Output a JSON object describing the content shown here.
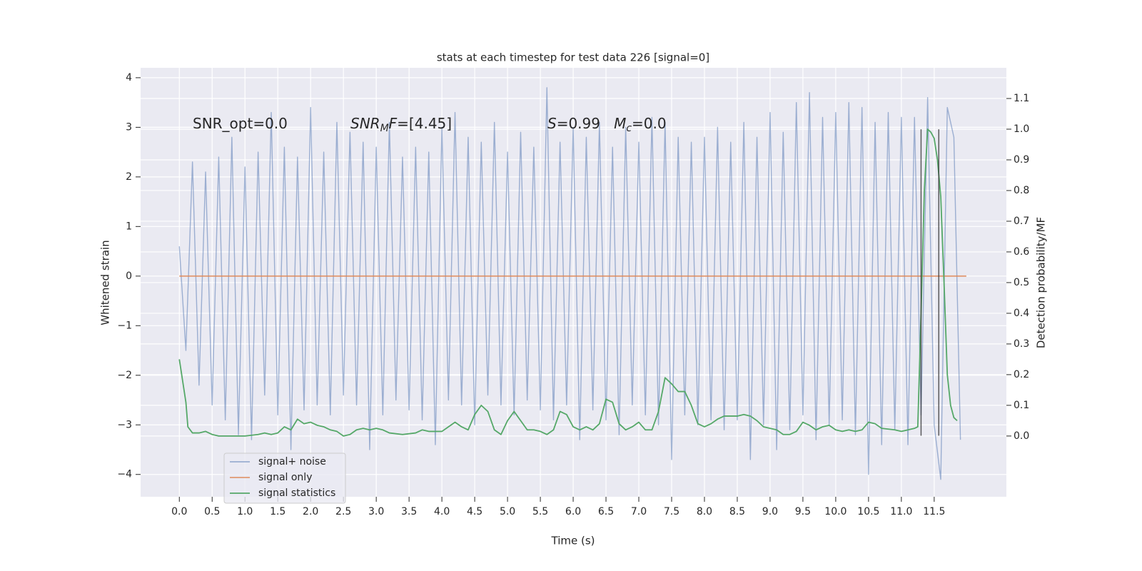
{
  "chart_data": {
    "type": "line",
    "title": "stats at each timestep for test data 226 [signal=0]",
    "xlabel": "Time (s)",
    "ylabel": "Whitened strain",
    "y2label": "Detection probability/MF",
    "xlim": [
      -0.59,
      12.6
    ],
    "ylim": [
      -4.45,
      4.2
    ],
    "y2lim": [
      -0.198,
      1.2
    ],
    "xticks": [
      {
        "value": 0,
        "label": "0.0"
      },
      0.5,
      {
        "value": 1,
        "label": "1.0"
      },
      1.5,
      {
        "value": 2,
        "label": "2.0"
      },
      2.5,
      {
        "value": 3,
        "label": "3.0"
      },
      3.5,
      {
        "value": 4,
        "label": "4.0"
      },
      4.5,
      {
        "value": 5,
        "label": "5.0"
      },
      5.5,
      {
        "value": 6,
        "label": "6.0"
      },
      6.5,
      {
        "value": 7,
        "label": "7.0"
      },
      7.5,
      {
        "value": 8,
        "label": "8.0"
      },
      8.5,
      {
        "value": 9,
        "label": "9.0"
      },
      9.5,
      {
        "value": 10,
        "label": "10.0"
      },
      10.5,
      {
        "value": 11,
        "label": "11.0"
      },
      11.5
    ],
    "yticks": [
      {
        "value": -4,
        "label": "−4"
      },
      {
        "value": -3,
        "label": "−3"
      },
      {
        "value": -2,
        "label": "−2"
      },
      {
        "value": -1,
        "label": "−1"
      },
      0,
      1,
      2,
      3,
      4
    ],
    "y2ticks": [
      {
        "value": 0,
        "label": "0.0"
      },
      0.1,
      0.2,
      0.3,
      0.4,
      0.5,
      0.6,
      0.7,
      0.8,
      0.9,
      {
        "value": 1,
        "label": "1.0"
      },
      1.1
    ],
    "grid": true,
    "legend": "lower left",
    "series": [
      {
        "name": "signal+ noise",
        "color": "#4c72b0",
        "opacity": 0.5,
        "x": [
          0,
          0.1,
          0.2,
          0.3,
          0.4,
          0.5,
          0.6,
          0.7,
          0.8,
          0.9,
          1,
          1.1,
          1.2,
          1.3,
          1.4,
          1.5,
          1.6,
          1.7,
          1.8,
          1.9,
          2,
          2.1,
          2.2,
          2.3,
          2.4,
          2.5,
          2.6,
          2.7,
          2.8,
          2.9,
          3,
          3.1,
          3.2,
          3.3,
          3.4,
          3.5,
          3.6,
          3.7,
          3.8,
          3.9,
          4,
          4.1,
          4.2,
          4.3,
          4.4,
          4.5,
          4.6,
          4.7,
          4.8,
          4.9,
          5,
          5.1,
          5.2,
          5.3,
          5.4,
          5.5,
          5.6,
          5.7,
          5.8,
          5.9,
          6,
          6.1,
          6.2,
          6.3,
          6.4,
          6.5,
          6.6,
          6.7,
          6.8,
          6.9,
          7,
          7.1,
          7.2,
          7.3,
          7.4,
          7.5,
          7.6,
          7.7,
          7.8,
          7.9,
          8,
          8.1,
          8.2,
          8.3,
          8.4,
          8.5,
          8.6,
          8.7,
          8.8,
          8.9,
          9,
          9.1,
          9.2,
          9.3,
          9.4,
          9.5,
          9.6,
          9.7,
          9.8,
          9.9,
          10,
          10.1,
          10.2,
          10.3,
          10.4,
          10.5,
          10.6,
          10.7,
          10.8,
          10.9,
          11,
          11.1,
          11.2,
          11.3,
          11.4,
          11.5,
          11.6,
          11.7,
          11.8,
          11.9
        ],
        "values": [
          0.6,
          -1.5,
          2.3,
          -2.2,
          2.1,
          -2.6,
          2.4,
          -2.9,
          2.8,
          -3.2,
          2.2,
          -3.3,
          2.5,
          -2.4,
          3.3,
          -2.8,
          2.6,
          -3.5,
          2.4,
          -2.7,
          3.4,
          -2.6,
          2.5,
          -2.8,
          3.1,
          -2.4,
          2.9,
          -2.6,
          2.7,
          -3.5,
          2.6,
          -2.8,
          3.1,
          -2.5,
          2.4,
          -2.7,
          2.6,
          -2.9,
          2.5,
          -3.4,
          3.0,
          -2.5,
          3.3,
          -2.6,
          2.8,
          -3.0,
          2.7,
          -2.4,
          3.1,
          -2.6,
          2.5,
          -2.8,
          2.9,
          -2.5,
          2.6,
          -2.7,
          3.8,
          -2.9,
          2.7,
          -2.6,
          3.0,
          -3.3,
          2.8,
          -2.7,
          3.1,
          -2.9,
          2.6,
          -3.2,
          3.0,
          -2.6,
          2.7,
          -2.8,
          3.2,
          -3.0,
          3.1,
          -3.7,
          2.8,
          -2.8,
          2.7,
          -3.0,
          2.8,
          -2.9,
          3.0,
          -3.1,
          2.7,
          -2.9,
          3.1,
          -3.7,
          2.8,
          -3.0,
          3.3,
          -3.5,
          2.9,
          -3.1,
          3.5,
          -2.8,
          3.7,
          -3.3,
          3.2,
          -3.0,
          3.3,
          -2.9,
          3.5,
          -3.2,
          3.4,
          -4.0,
          3.1,
          -3.4,
          3.3,
          -3.1,
          3.2,
          -3.4,
          3.2,
          -2.8,
          3.6,
          -3.0,
          -4.1,
          3.4,
          2.8,
          -3.3
        ]
      },
      {
        "name": "signal only",
        "color": "#dd8452",
        "opacity": 0.8,
        "x": [
          0,
          11.99
        ],
        "values": [
          0,
          0
        ]
      },
      {
        "name": "signal statistics",
        "color": "#55a868",
        "opacity": 1,
        "axis": "y2",
        "x": [
          0,
          0.1,
          0.13,
          0.2,
          0.3,
          0.4,
          0.5,
          0.6,
          0.8,
          1,
          1.2,
          1.3,
          1.4,
          1.5,
          1.6,
          1.7,
          1.8,
          1.9,
          2,
          2.1,
          2.2,
          2.3,
          2.4,
          2.5,
          2.6,
          2.7,
          2.8,
          2.9,
          3,
          3.1,
          3.2,
          3.4,
          3.6,
          3.7,
          3.8,
          4,
          4.1,
          4.2,
          4.3,
          4.4,
          4.5,
          4.6,
          4.7,
          4.8,
          4.9,
          5,
          5.1,
          5.2,
          5.3,
          5.4,
          5.5,
          5.6,
          5.7,
          5.8,
          5.9,
          6,
          6.1,
          6.2,
          6.3,
          6.4,
          6.5,
          6.6,
          6.7,
          6.8,
          6.9,
          7,
          7.1,
          7.2,
          7.3,
          7.4,
          7.5,
          7.6,
          7.7,
          7.8,
          7.9,
          8,
          8.1,
          8.2,
          8.3,
          8.5,
          8.6,
          8.7,
          8.8,
          8.9,
          9,
          9.1,
          9.2,
          9.3,
          9.4,
          9.5,
          9.6,
          9.7,
          9.8,
          9.9,
          10,
          10.1,
          10.2,
          10.3,
          10.4,
          10.5,
          10.6,
          10.7,
          10.9,
          11,
          11.1,
          11.2,
          11.25,
          11.3,
          11.35,
          11.4,
          11.45,
          11.5,
          11.55,
          11.6,
          11.65,
          11.7,
          11.75,
          11.8,
          11.85
        ],
        "values": [
          0.25,
          0.11,
          0.03,
          0.01,
          0.01,
          0.015,
          0.005,
          0,
          0,
          0,
          0.005,
          0.01,
          0.005,
          0.01,
          0.03,
          0.02,
          0.055,
          0.04,
          0.045,
          0.035,
          0.03,
          0.02,
          0.015,
          0,
          0.005,
          0.02,
          0.025,
          0.02,
          0.025,
          0.02,
          0.01,
          0.005,
          0.01,
          0.02,
          0.015,
          0.015,
          0.03,
          0.045,
          0.03,
          0.02,
          0.07,
          0.1,
          0.08,
          0.02,
          0.005,
          0.05,
          0.08,
          0.05,
          0.02,
          0.02,
          0.015,
          0.005,
          0.02,
          0.08,
          0.07,
          0.03,
          0.02,
          0.03,
          0.02,
          0.04,
          0.12,
          0.11,
          0.04,
          0.02,
          0.03,
          0.045,
          0.02,
          0.02,
          0.08,
          0.19,
          0.17,
          0.145,
          0.145,
          0.1,
          0.04,
          0.03,
          0.04,
          0.055,
          0.065,
          0.065,
          0.07,
          0.065,
          0.05,
          0.03,
          0.025,
          0.02,
          0.005,
          0.005,
          0.015,
          0.045,
          0.035,
          0.02,
          0.03,
          0.035,
          0.02,
          0.015,
          0.02,
          0.015,
          0.02,
          0.045,
          0.04,
          0.025,
          0.02,
          0.015,
          0.02,
          0.025,
          0.03,
          0.4,
          0.8,
          1.0,
          0.99,
          0.97,
          0.9,
          0.78,
          0.5,
          0.2,
          0.1,
          0.06,
          0.05
        ]
      }
    ],
    "vlines": {
      "x": [
        11.3,
        11.57
      ],
      "ymin": -3.22,
      "ymax": 2.96,
      "color": "#333333"
    },
    "annotations": [
      {
        "parts": [
          {
            "text": "SNR_opt=0.0"
          }
        ]
      },
      {
        "parts": [
          {
            "text": "SNR",
            "italic": true
          },
          {
            "text": "M",
            "italic": true,
            "sub": true
          },
          {
            "text": "F",
            "italic": true
          },
          {
            "text": "=[4.45]"
          }
        ]
      },
      {
        "parts": [
          {
            "text": "S",
            "italic": true
          },
          {
            "text": "=0.99   "
          },
          {
            "text": "M",
            "italic": true
          },
          {
            "text": "c",
            "italic": true,
            "sub": true
          },
          {
            "text": "=0.0"
          }
        ]
      }
    ]
  }
}
